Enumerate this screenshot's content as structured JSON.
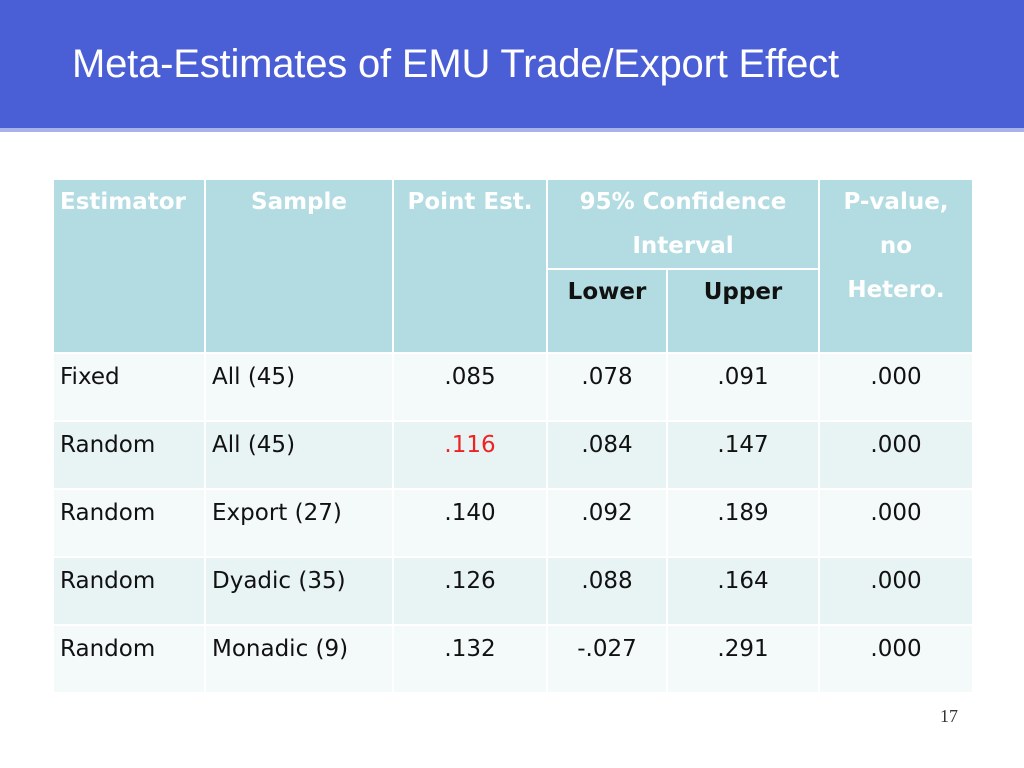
{
  "slide": {
    "title": "Meta-Estimates of EMU Trade/Export Effect",
    "page_number": "17",
    "accent_color": "#4a5ed6",
    "highlight_color": "#ee2222"
  },
  "table": {
    "headers": {
      "estimator": "Estimator",
      "sample": "Sample",
      "point_est": "Point Est.",
      "ci_line1": "95% Confidence",
      "ci_line2": "Interval",
      "lower": "Lower",
      "upper": "Upper",
      "pvalue_line1": "P-value,",
      "pvalue_line2": "no",
      "pvalue_line3": "Hetero."
    },
    "rows": [
      {
        "estimator": "Fixed",
        "sample": "All (45)",
        "point": ".085",
        "lower": ".078",
        "upper": ".091",
        "pvalue": ".000"
      },
      {
        "estimator": "Random",
        "sample": "All (45)",
        "point": ".116",
        "lower": ".084",
        "upper": ".147",
        "pvalue": ".000"
      },
      {
        "estimator": "Random",
        "sample": "Export (27)",
        "point": ".140",
        "lower": ".092",
        "upper": ".189",
        "pvalue": ".000"
      },
      {
        "estimator": "Random",
        "sample": "Dyadic (35)",
        "point": ".126",
        "lower": ".088",
        "upper": ".164",
        "pvalue": ".000"
      },
      {
        "estimator": "Random",
        "sample": "Monadic (9)",
        "point": ".132",
        "lower": "-.027",
        "upper": ".291",
        "pvalue": ".000"
      }
    ]
  }
}
